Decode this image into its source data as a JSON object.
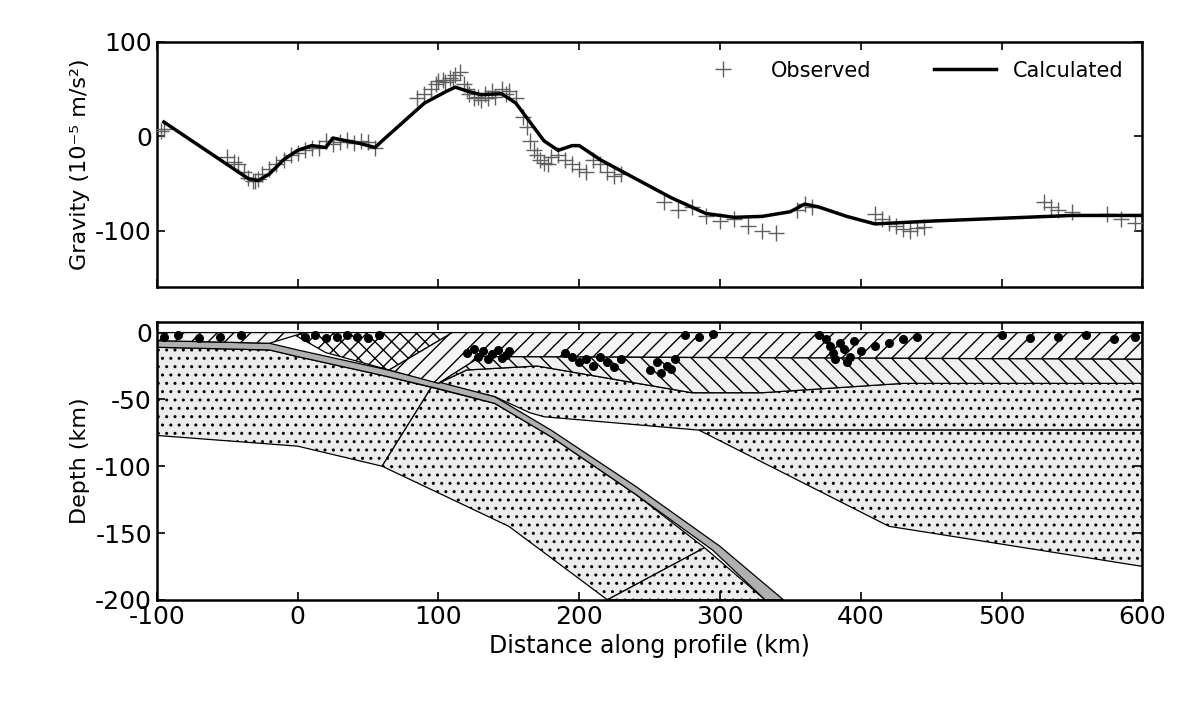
{
  "chart_data": [
    {
      "type": "line",
      "ylabel": "Gravity (10⁻⁵ m/s²)",
      "xlim": [
        -100,
        600
      ],
      "xticks": [
        -100,
        0,
        100,
        200,
        300,
        400,
        500,
        600
      ],
      "ylim": [
        -160,
        100
      ],
      "yticks": [
        -100,
        0,
        100
      ],
      "tick_labels": "y",
      "legend": "upper right",
      "series": [
        {
          "name": "Observed",
          "type": "scatter",
          "marker": "+",
          "color": "#606060",
          "x": [
            -97,
            -95,
            -50,
            -45,
            -42,
            -38,
            -35,
            -32,
            -30,
            -28,
            -25,
            -20,
            -15,
            -10,
            -5,
            0,
            5,
            10,
            15,
            20,
            25,
            30,
            35,
            40,
            45,
            50,
            55,
            85,
            90,
            95,
            98,
            100,
            103,
            105,
            108,
            110,
            112,
            115,
            118,
            120,
            122,
            125,
            128,
            130,
            133,
            135,
            138,
            140,
            145,
            148,
            150,
            155,
            160,
            163,
            165,
            168,
            170,
            172,
            175,
            178,
            180,
            185,
            190,
            195,
            200,
            205,
            210,
            215,
            220,
            225,
            230,
            260,
            270,
            280,
            290,
            300,
            310,
            320,
            330,
            340,
            355,
            360,
            365,
            410,
            415,
            420,
            425,
            430,
            435,
            440,
            445,
            530,
            535,
            540,
            550,
            575,
            585,
            595
          ],
          "values": [
            5,
            8,
            -22,
            -27,
            -30,
            -38,
            -44,
            -47,
            -48,
            -45,
            -40,
            -35,
            -30,
            -25,
            -20,
            -18,
            -15,
            -12,
            -13,
            -5,
            -8,
            -6,
            -4,
            -7,
            -5,
            -6,
            -12,
            40,
            45,
            50,
            55,
            58,
            60,
            57,
            62,
            60,
            65,
            68,
            55,
            50,
            45,
            40,
            42,
            38,
            45,
            40,
            48,
            42,
            50,
            45,
            48,
            40,
            20,
            10,
            -5,
            -15,
            -20,
            -25,
            -28,
            -30,
            -22,
            -20,
            -25,
            -30,
            -35,
            -38,
            -25,
            -30,
            -38,
            -42,
            -40,
            -70,
            -78,
            -75,
            -85,
            -90,
            -88,
            -95,
            -100,
            -103,
            -78,
            -72,
            -75,
            -82,
            -88,
            -92,
            -95,
            -98,
            -100,
            -97,
            -96,
            -70,
            -75,
            -78,
            -80,
            -82,
            -88,
            -92
          ]
        },
        {
          "name": "Calculated",
          "type": "line",
          "color": "#000000",
          "x": [
            -95,
            -80,
            -60,
            -45,
            -35,
            -28,
            -20,
            -10,
            0,
            10,
            20,
            25,
            35,
            45,
            55,
            60,
            75,
            90,
            105,
            112,
            120,
            130,
            145,
            155,
            165,
            175,
            185,
            195,
            200,
            215,
            240,
            265,
            290,
            310,
            330,
            350,
            360,
            370,
            390,
            410,
            450,
            500,
            550,
            600
          ],
          "values": [
            15,
            0,
            -20,
            -35,
            -45,
            -47,
            -40,
            -25,
            -15,
            -10,
            -12,
            -2,
            -5,
            -8,
            -12,
            -5,
            15,
            35,
            47,
            52,
            48,
            44,
            45,
            35,
            15,
            -5,
            -15,
            -10,
            -10,
            -25,
            -45,
            -65,
            -82,
            -86,
            -85,
            -80,
            -72,
            -75,
            -85,
            -93,
            -90,
            -87,
            -84,
            -84
          ]
        }
      ]
    },
    {
      "type": "section",
      "xlabel": "Distance along profile (km)",
      "ylabel": "Depth (km)",
      "xlim": [
        -100,
        600
      ],
      "xticks": [
        -100,
        0,
        100,
        200,
        300,
        400,
        500,
        600
      ],
      "ylim": [
        -200,
        8
      ],
      "yticks": [
        0,
        -50,
        -100,
        -150,
        -200
      ],
      "bodies": [
        {
          "color": "#ececec",
          "x": [
            -100,
            -20,
            0,
            60,
            95,
            60,
            0,
            -100
          ],
          "y": [
            -11,
            -13,
            -18,
            -32,
            -41,
            -100,
            -85,
            -77
          ]
        },
        {
          "color": "#ececec",
          "x": [
            95,
            140,
            180,
            240,
            289,
            220,
            150,
            60
          ],
          "y": [
            -41,
            -53,
            -78,
            -121,
            -161,
            -200,
            -145,
            -100
          ]
        },
        {
          "color": "#ececec",
          "x": [
            289,
            332,
            220
          ],
          "y": [
            -161,
            -200,
            -200
          ]
        },
        {
          "color": "#ececec",
          "x": [
            120,
            170,
            280,
            330,
            430,
            600,
            600,
            285,
            175,
            165,
            140,
            100
          ],
          "y": [
            -28,
            -25,
            -45,
            -45,
            -38,
            -38,
            -73,
            -73,
            -63,
            -60,
            -48,
            -38
          ]
        },
        {
          "color": "#ececec",
          "x": [
            285,
            600,
            600,
            420
          ],
          "y": [
            -73,
            -73,
            -175,
            -145
          ]
        },
        {
          "color": "#b0b0b0",
          "x": [
            -100,
            -20,
            0,
            60,
            100,
            140,
            180,
            240,
            300,
            345,
            332,
            295,
            240,
            180,
            140,
            100,
            60,
            0,
            -20,
            -100
          ],
          "y": [
            -6,
            -8,
            -13,
            -27,
            -37,
            -48,
            -73,
            -115,
            -160,
            -200,
            -200,
            -163,
            -121,
            -78,
            -53,
            -42,
            -32,
            -18,
            -13,
            -11
          ]
        },
        {
          "color": "#fafafa",
          "x": [
            -5,
            110,
            65,
            20
          ],
          "y": [
            0,
            0,
            -28,
            -15
          ]
        },
        {
          "color": "#f5f5f5",
          "x": [
            -100,
            5,
            -20,
            -100
          ],
          "y": [
            0,
            0,
            -8,
            -6
          ]
        },
        {
          "color": "#f5f5f5",
          "x": [
            110,
            600,
            600,
            130,
            100,
            65
          ],
          "y": [
            0,
            0,
            -20,
            -18,
            -38,
            -28
          ]
        },
        {
          "color": "#f0f0f0",
          "x": [
            130,
            600,
            600,
            430,
            330,
            280,
            170,
            120,
            100
          ],
          "y": [
            -18,
            -20,
            -38,
            -38,
            -45,
            -45,
            -25,
            -28,
            -38
          ]
        }
      ],
      "series": [
        {
          "type": "scatter",
          "marker": "o",
          "color": "#000000",
          "x": [
            -95,
            -85,
            -70,
            -55,
            -40,
            5,
            12,
            20,
            28,
            35,
            42,
            50,
            58,
            120,
            125,
            128,
            132,
            135,
            138,
            142,
            145,
            148,
            150,
            190,
            195,
            200,
            205,
            210,
            215,
            220,
            225,
            230,
            250,
            255,
            258,
            262,
            265,
            268,
            275,
            285,
            295,
            370,
            375,
            378,
            380,
            382,
            385,
            388,
            390,
            392,
            395,
            400,
            410,
            420,
            430,
            440,
            500,
            520,
            540,
            560,
            580,
            595
          ],
          "values": [
            -3,
            -2,
            -4,
            -3,
            -2,
            -3,
            -2,
            -4,
            -3,
            -2,
            -3,
            -4,
            -2,
            -15,
            -12,
            -18,
            -14,
            -20,
            -16,
            -13,
            -19,
            -17,
            -14,
            -15,
            -18,
            -22,
            -20,
            -25,
            -18,
            -22,
            -26,
            -20,
            -28,
            -22,
            -30,
            -25,
            -27,
            -20,
            -2,
            -3,
            -1,
            -2,
            -5,
            -10,
            -15,
            -20,
            -8,
            -12,
            -22,
            -18,
            -6,
            -14,
            -10,
            -8,
            -5,
            -3,
            -2,
            -4,
            -3,
            -2,
            -5,
            -3
          ]
        }
      ]
    }
  ]
}
